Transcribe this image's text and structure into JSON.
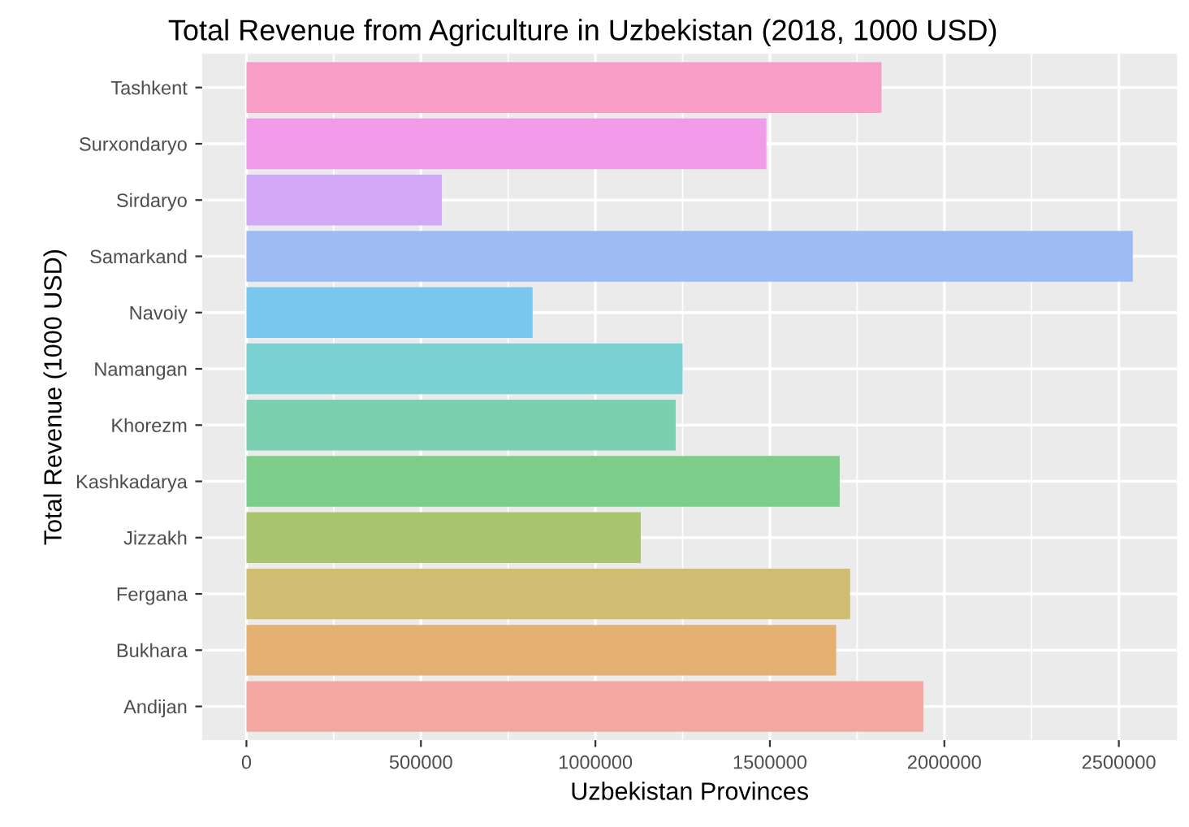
{
  "chart_data": {
    "type": "bar",
    "orientation": "horizontal",
    "title": "Total Revenue from Agriculture in Uzbekistan (2018, 1000 USD)",
    "xlabel": "Uzbekistan Provinces",
    "ylabel": "Total Revenue (1000 USD)",
    "categories": [
      "Tashkent",
      "Surxondaryo",
      "Sirdaryo",
      "Samarkand",
      "Navoiy",
      "Namangan",
      "Khorezm",
      "Kashkadarya",
      "Jizzakh",
      "Fergana",
      "Bukhara",
      "Andijan"
    ],
    "values": [
      1820000,
      1490000,
      560000,
      2540000,
      820000,
      1250000,
      1230000,
      1700000,
      1130000,
      1730000,
      1690000,
      1940000
    ],
    "colors": [
      "#f79dc8",
      "#f09ae8",
      "#d3a8f7",
      "#9dbbf5",
      "#79c6ee",
      "#7bd0d2",
      "#7ad0b0",
      "#7ccd89",
      "#a9c46f",
      "#cfbe72",
      "#e5b173",
      "#f3a8a3"
    ],
    "xlim": [
      -127000,
      2667000
    ],
    "xticks": [
      0,
      500000,
      1000000,
      1500000,
      2000000,
      2500000
    ],
    "grid": true
  }
}
